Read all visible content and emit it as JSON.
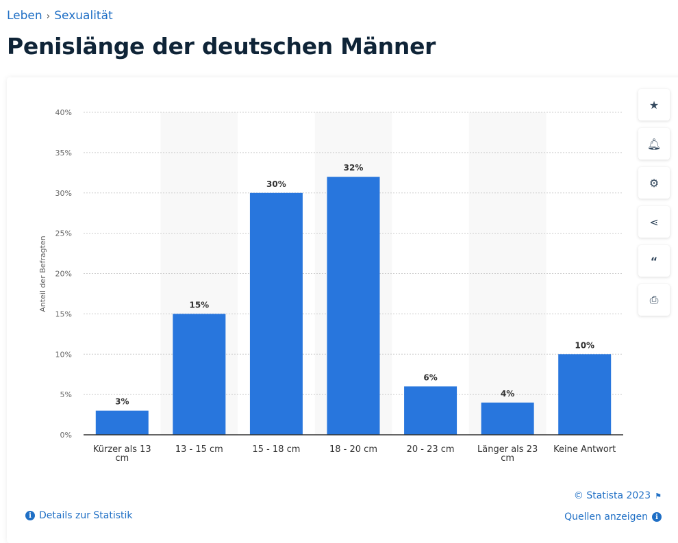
{
  "breadcrumb": [
    "Leben",
    "Sexualität"
  ],
  "title": "Penislänge der deutschen Männer",
  "side_buttons": [
    "star-icon",
    "bell-icon",
    "gear-icon",
    "share-icon",
    "quote-icon",
    "print-icon"
  ],
  "footer": {
    "copyright": "© Statista 2023",
    "details": "Details zur Statistik",
    "sources": "Quellen anzeigen"
  },
  "colors": {
    "bar": "#2876dd",
    "link": "#1f6fc5"
  },
  "chart_data": {
    "type": "bar",
    "categories": [
      "Kürzer als 13 cm",
      "13 - 15 cm",
      "15 - 18 cm",
      "18 - 20 cm",
      "20 - 23 cm",
      "Länger als 23 cm",
      "Keine Antwort"
    ],
    "values": [
      3,
      15,
      30,
      32,
      6,
      4,
      10
    ],
    "data_labels": [
      "3%",
      "15%",
      "30%",
      "32%",
      "6%",
      "4%",
      "10%"
    ],
    "ylabel": "Anteil der Befragten",
    "ylim": [
      0,
      40
    ],
    "yticks": [
      "0%",
      "5%",
      "10%",
      "15%",
      "20%",
      "25%",
      "30%",
      "35%",
      "40%"
    ],
    "grid": true
  }
}
